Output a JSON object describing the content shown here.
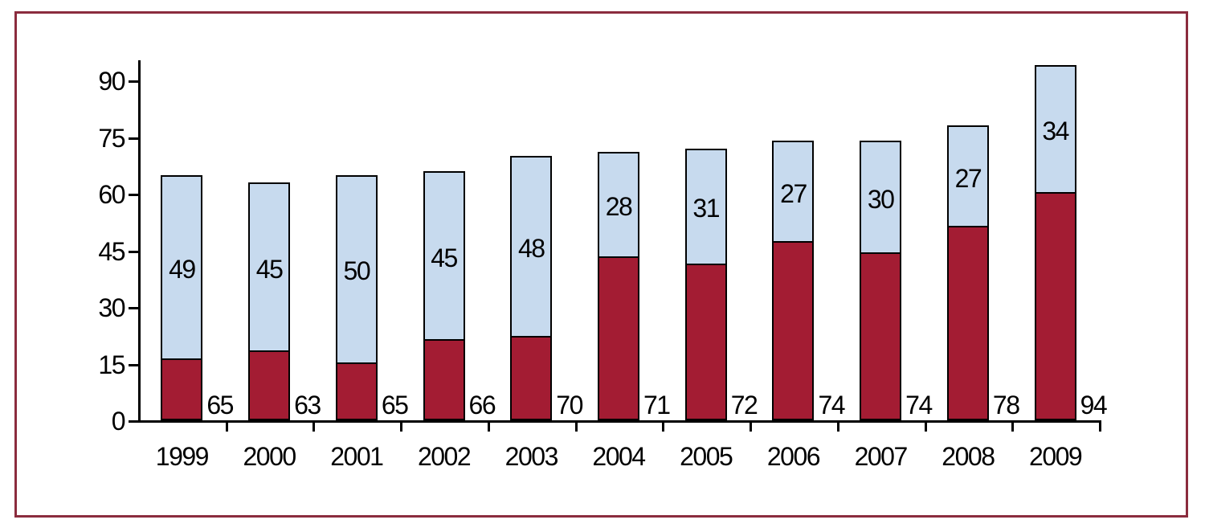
{
  "figure": {
    "frame_border_color": "#8B2C3E",
    "background_color": "#FFFFFF"
  },
  "chart_data": {
    "type": "bar",
    "stacked": true,
    "title": "",
    "xlabel": "",
    "ylabel": "",
    "categories": [
      "1999",
      "2000",
      "2001",
      "2002",
      "2003",
      "2004",
      "2005",
      "2006",
      "2007",
      "2008",
      "2009"
    ],
    "series": [
      {
        "name": "bottom-segment",
        "color": "#A31C33",
        "values": [
          16,
          18,
          15,
          21,
          22,
          43,
          41,
          47,
          44,
          51,
          60
        ],
        "labels_shown": false
      },
      {
        "name": "top-segment",
        "color": "#C7DAEE",
        "values": [
          49,
          45,
          50,
          45,
          48,
          28,
          31,
          27,
          30,
          27,
          34
        ],
        "labels_shown": true
      }
    ],
    "totals": [
      65,
      63,
      65,
      66,
      70,
      71,
      72,
      74,
      74,
      78,
      94
    ],
    "total_labels_position": "right-of-bar-above-axis",
    "ylim": [
      0,
      95
    ],
    "yticks": [
      0,
      15,
      30,
      45,
      60,
      75,
      90
    ],
    "grid": false,
    "legend": "none",
    "bar_stroke_color": "#000000",
    "axis_color": "#000000",
    "text_color": "#000000"
  }
}
